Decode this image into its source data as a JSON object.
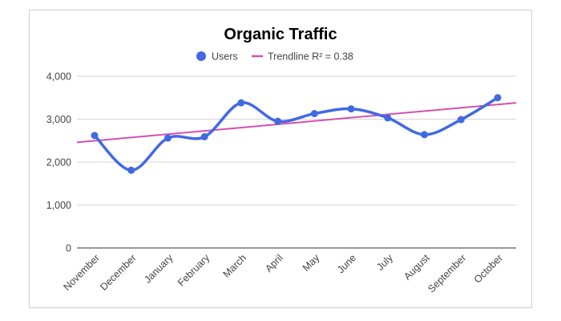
{
  "chart_data": {
    "type": "line",
    "title": "Organic Traffic",
    "categories": [
      "November",
      "December",
      "January",
      "February",
      "March",
      "April",
      "May",
      "June",
      "July",
      "August",
      "September",
      "October"
    ],
    "series": [
      {
        "name": "Users",
        "values": [
          2620,
          1810,
          2560,
          2590,
          3380,
          2950,
          3130,
          3240,
          3030,
          2640,
          2990,
          3500
        ],
        "color": "#4169e1"
      }
    ],
    "trendline": {
      "label": "Trendline R² = 0.38",
      "start": 2460,
      "end": 3380,
      "color": "#d44fb0"
    },
    "y_ticks": [
      "0",
      "1,000",
      "2,000",
      "3,000",
      "4,000"
    ],
    "ylim": [
      0,
      4000
    ],
    "grid": true,
    "legend_position": "top-center",
    "xlabel": "",
    "ylabel": ""
  }
}
